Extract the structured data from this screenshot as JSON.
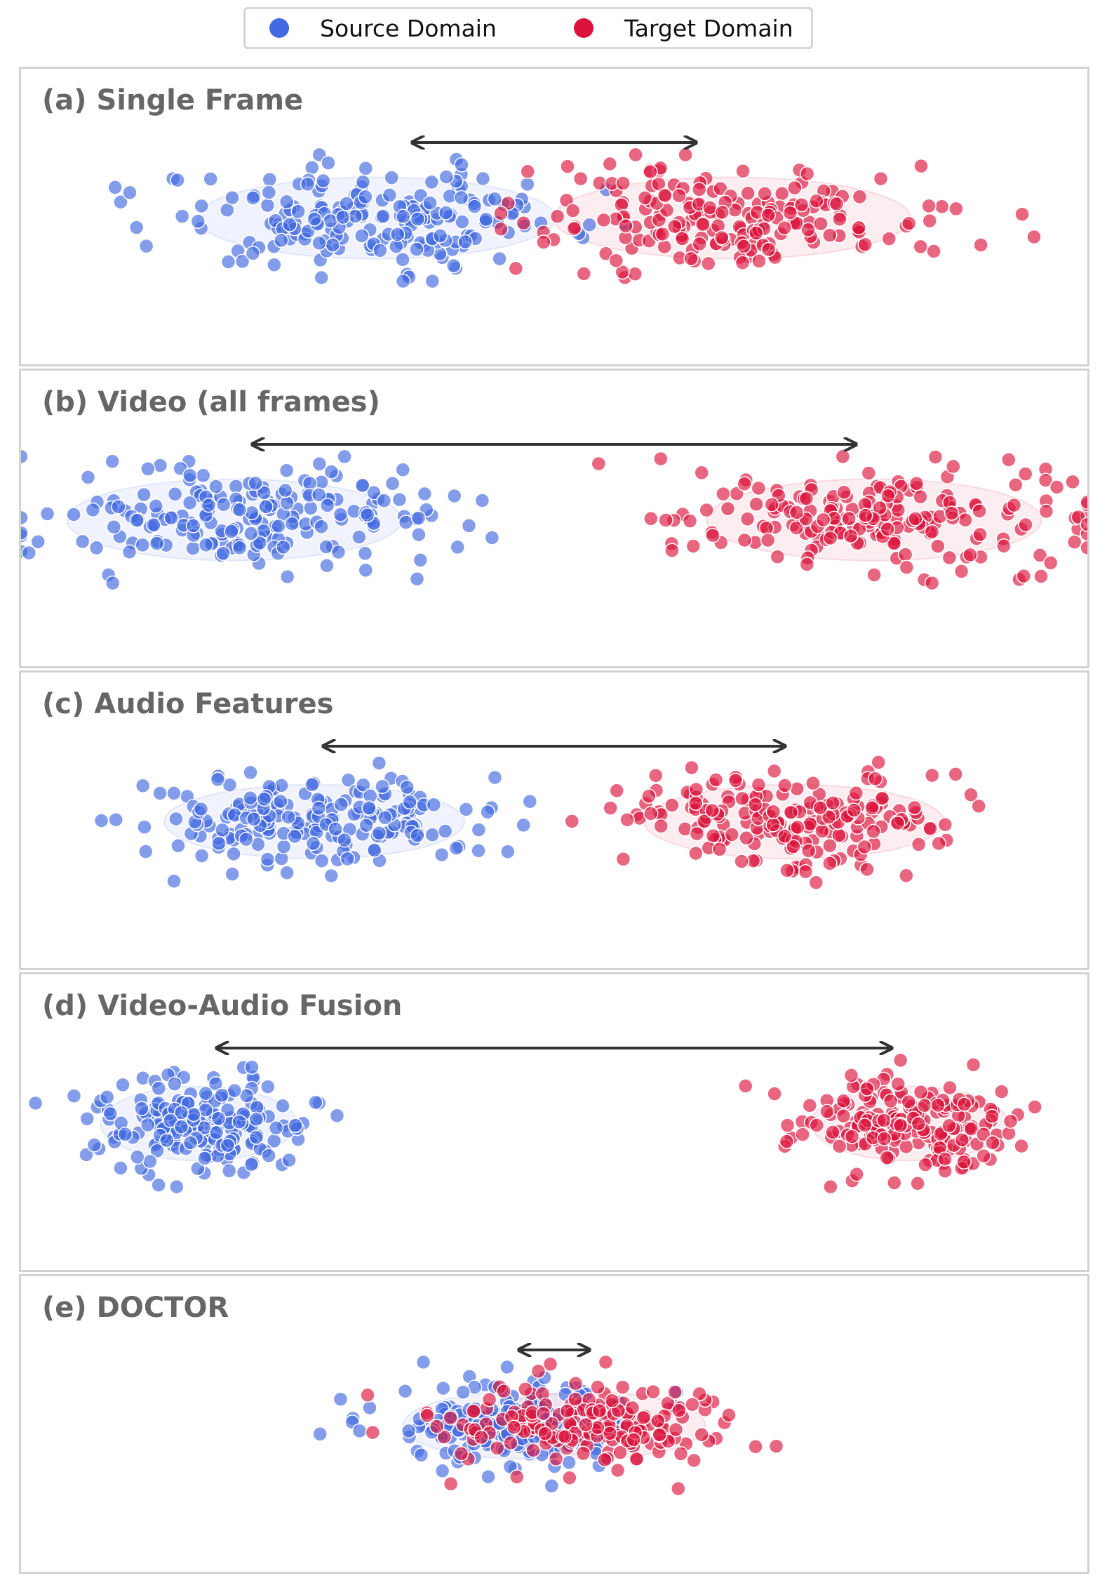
{
  "legend": {
    "source_label": "Source Domain",
    "target_label": "Target Domain",
    "source_color": "#4169e1",
    "target_color": "#dc143c"
  },
  "chart_data": [
    {
      "type": "scatter",
      "title": "(a) Single Frame",
      "axes_visible": false,
      "series": [
        {
          "name": "Source Domain",
          "color": "#4169e1",
          "n_points": 200,
          "center": [
            -2.0,
            0.0
          ],
          "spread": [
            1.55,
            0.55
          ],
          "range_x": [
            -5.4,
            0.8
          ]
        },
        {
          "name": "Target Domain",
          "color": "#dc143c",
          "n_points": 200,
          "center": [
            2.0,
            0.0
          ],
          "spread": [
            1.55,
            0.55
          ],
          "range_x": [
            -0.6,
            5.4
          ]
        }
      ],
      "arrow": {
        "from_x": -1.6,
        "to_x": 1.6
      },
      "xlim": [
        -6,
        6
      ],
      "ylim": [
        -1.5,
        1.5
      ]
    },
    {
      "type": "scatter",
      "title": "(b) Video (all frames)",
      "axes_visible": false,
      "series": [
        {
          "name": "Source Domain",
          "color": "#4169e1",
          "n_points": 200,
          "center": [
            -3.6,
            0.0
          ],
          "spread": [
            1.45,
            0.55
          ],
          "range_x": [
            -6.0,
            -0.4
          ]
        },
        {
          "name": "Target Domain",
          "color": "#dc143c",
          "n_points": 200,
          "center": [
            3.6,
            0.0
          ],
          "spread": [
            1.45,
            0.55
          ],
          "range_x": [
            0.5,
            6.0
          ]
        }
      ],
      "arrow": {
        "from_x": -3.4,
        "to_x": 3.4
      },
      "xlim": [
        -6,
        6
      ],
      "ylim": [
        -1.5,
        1.5
      ]
    },
    {
      "type": "scatter",
      "title": "(c) Audio Features",
      "axes_visible": false,
      "series": [
        {
          "name": "Source Domain",
          "color": "#4169e1",
          "n_points": 200,
          "center": [
            -2.7,
            0.0
          ],
          "spread": [
            1.3,
            0.5
          ],
          "range_x": [
            -5.8,
            0.2
          ]
        },
        {
          "name": "Target Domain",
          "color": "#dc143c",
          "n_points": 200,
          "center": [
            2.7,
            0.0
          ],
          "spread": [
            1.3,
            0.5
          ],
          "range_x": [
            0.2,
            5.8
          ]
        }
      ],
      "arrow": {
        "from_x": -2.6,
        "to_x": 2.6
      },
      "xlim": [
        -6,
        6
      ],
      "ylim": [
        -1.5,
        1.5
      ]
    },
    {
      "type": "scatter",
      "title": "(d) Video-Audio Fusion",
      "axes_visible": false,
      "series": [
        {
          "name": "Source Domain",
          "color": "#4169e1",
          "n_points": 200,
          "center": [
            -4.0,
            0.0
          ],
          "spread": [
            0.85,
            0.5
          ],
          "range_x": [
            -6.0,
            -1.9
          ]
        },
        {
          "name": "Target Domain",
          "color": "#dc143c",
          "n_points": 200,
          "center": [
            4.0,
            0.0
          ],
          "spread": [
            0.85,
            0.5
          ],
          "range_x": [
            1.9,
            6.0
          ]
        }
      ],
      "arrow": {
        "from_x": -3.8,
        "to_x": 3.8
      },
      "xlim": [
        -6,
        6
      ],
      "ylim": [
        -1.5,
        1.5
      ]
    },
    {
      "type": "scatter",
      "title": "(e) DOCTOR",
      "axes_visible": false,
      "series": [
        {
          "name": "Source Domain",
          "color": "#4169e1",
          "n_points": 200,
          "center": [
            -0.4,
            0.0
          ],
          "spread": [
            1.0,
            0.45
          ],
          "range_x": [
            -3.3,
            3.2
          ]
        },
        {
          "name": "Target Domain",
          "color": "#dc143c",
          "n_points": 200,
          "center": [
            0.4,
            0.0
          ],
          "spread": [
            1.0,
            0.45
          ],
          "range_x": [
            -2.1,
            3.1
          ]
        }
      ],
      "arrow": {
        "from_x": -0.4,
        "to_x": 0.4
      },
      "xlim": [
        -6,
        6
      ],
      "ylim": [
        -1.5,
        1.5
      ]
    }
  ]
}
